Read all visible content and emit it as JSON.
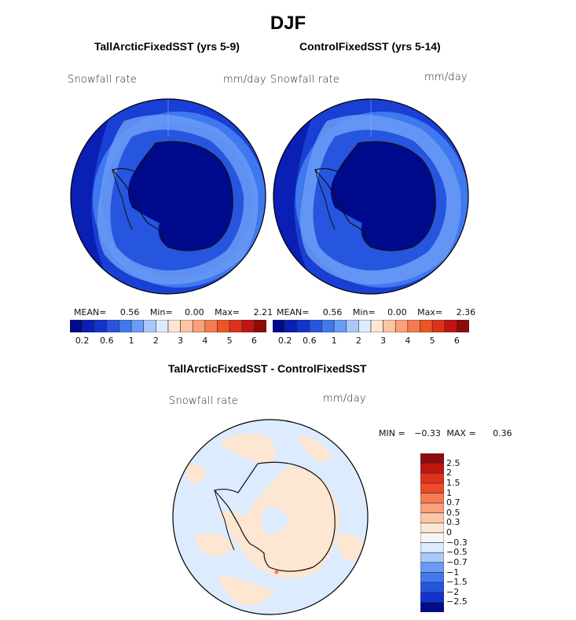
{
  "figure": {
    "title": "DJF",
    "field_label": "Snowfall rate",
    "units": "mm/day"
  },
  "colors": {
    "sequential": [
      "#000a8c",
      "#0a1fb3",
      "#1233cc",
      "#2655e0",
      "#3f78ef",
      "#6a9bf5",
      "#a9c8fa",
      "#ddebff",
      "#fde6d2",
      "#fcc6a5",
      "#fba07a",
      "#f77a50",
      "#ef5425",
      "#e0321a",
      "#c01410",
      "#8f0a0a"
    ],
    "diff": [
      "#8f0a0a",
      "#c01410",
      "#e0321a",
      "#f04a2a",
      "#f77a50",
      "#fba07a",
      "#fcc6a5",
      "#fde6d2",
      "#f6f6f6",
      "#ddebff",
      "#a9c8fa",
      "#6a9bf5",
      "#3f78ef",
      "#2655e0",
      "#1233cc",
      "#000a8c"
    ]
  },
  "chart_data": [
    {
      "type": "heatmap",
      "title": "TallArcticFixedSST (yrs 5-9)",
      "projection": "south-polar-stereographic",
      "field": "Snowfall rate",
      "units": "mm/day",
      "stats": {
        "mean": "0.56",
        "min": "0.00",
        "max": "2.21"
      },
      "colorbar_ticks": [
        "0.2",
        "0.6",
        "1",
        "2",
        "3",
        "4",
        "5",
        "6"
      ]
    },
    {
      "type": "heatmap",
      "title": "ControlFixedSST (yrs 5-14)",
      "projection": "south-polar-stereographic",
      "field": "Snowfall rate",
      "units": "mm/day",
      "stats": {
        "mean": "0.56",
        "min": "0.00",
        "max": "2.36"
      },
      "colorbar_ticks": [
        "0.2",
        "0.6",
        "1",
        "2",
        "3",
        "4",
        "5",
        "6"
      ]
    },
    {
      "type": "heatmap",
      "title": "TallArcticFixedSST - ControlFixedSST",
      "projection": "south-polar-stereographic",
      "field": "Snowfall rate",
      "units": "mm/day",
      "stats": {
        "min": "−0.33",
        "max": "0.36"
      },
      "colorbar_ticks": [
        "2.5",
        "2",
        "1.5",
        "1",
        "0.7",
        "0.5",
        "0.3",
        "0",
        "−0.3",
        "−0.5",
        "−0.7",
        "−1",
        "−1.5",
        "−2",
        "−2.5"
      ]
    }
  ],
  "labels": {
    "mean": "MEAN=",
    "min": "Min=",
    "max": "Max=",
    "diff_min": "MIN =",
    "diff_max": "MAX ="
  }
}
